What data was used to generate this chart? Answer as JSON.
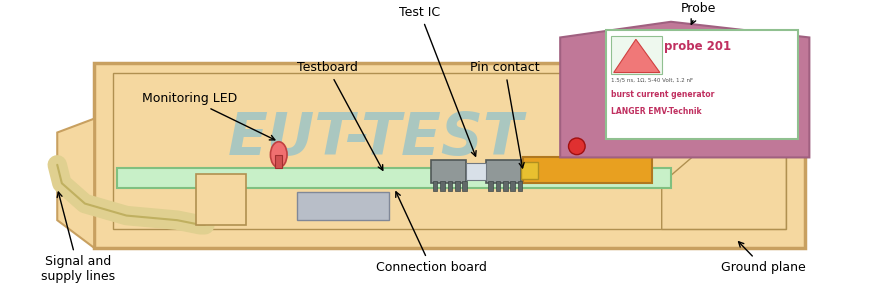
{
  "bg_color": "#ffffff",
  "board_color": "#f5d8a0",
  "board_outline": "#c8a060",
  "board_dark_outline": "#b09050",
  "green_board_color": "#c8f0c8",
  "green_board_outline": "#80c080",
  "probe_body_color": "#c07898",
  "probe_label_bg": "#ffffff",
  "probe_label_border": "#90c090",
  "probe_orange_base": "#e8a020",
  "led_color": "#f07070",
  "led_stem": "#c05050",
  "connector_color": "#c0c8d0",
  "ic_color": "#909898",
  "watermark_color": "#60b8e0",
  "cable_color": "#e0d090",
  "cable_outline": "#c0b060",
  "figsize": [
    8.86,
    2.88
  ],
  "dpi": 100,
  "probe_label_lines": [
    "1.5/5 ns, 1Ω, 5-40 Volt, 1.2 nF",
    "burst current generator",
    "LANGER EMV-Technik"
  ],
  "watermark_text": "EUT-TEST"
}
